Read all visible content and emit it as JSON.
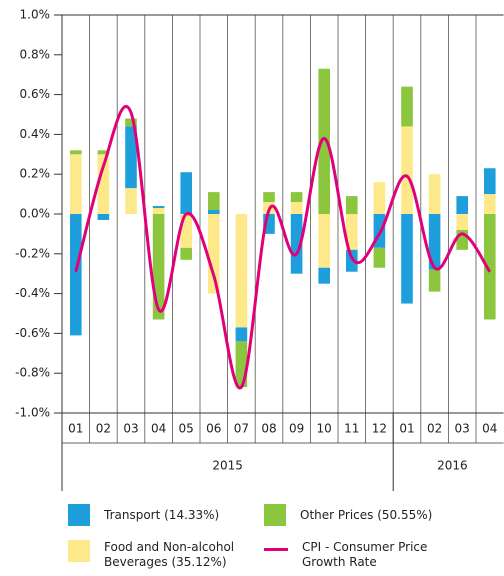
{
  "chart_data": {
    "type": "stacked-bar-line",
    "groups": [
      {
        "label": "2015",
        "categories": [
          "01",
          "02",
          "03",
          "04",
          "05",
          "06",
          "07",
          "08",
          "09",
          "10",
          "11",
          "12"
        ]
      },
      {
        "label": "2016",
        "categories": [
          "01",
          "02",
          "03",
          "04"
        ]
      }
    ],
    "series": [
      {
        "name": "Transport (14.33%)",
        "color": "#1e9fdc",
        "kind": "bar",
        "values": [
          -0.61,
          -0.03,
          0.31,
          0.01,
          0.21,
          0.02,
          -0.07,
          -0.1,
          -0.3,
          -0.08,
          -0.11,
          -0.17,
          -0.45,
          -0.28,
          0.09,
          0.13
        ]
      },
      {
        "name": "Food and Non-alcohol Beverages (35.12%)",
        "color": "#fde98a",
        "kind": "bar",
        "values": [
          0.3,
          0.3,
          0.13,
          0.03,
          -0.17,
          -0.4,
          -0.57,
          0.06,
          0.06,
          -0.27,
          -0.18,
          0.16,
          0.44,
          0.2,
          -0.08,
          0.1
        ]
      },
      {
        "name": "Other Prices (50.55%)",
        "color": "#8cc63f",
        "kind": "bar",
        "values": [
          0.02,
          0.02,
          0.04,
          -0.53,
          -0.06,
          0.09,
          -0.23,
          0.05,
          0.05,
          0.73,
          0.09,
          -0.1,
          0.2,
          -0.11,
          -0.1,
          -0.53
        ]
      },
      {
        "name": "CPI - Consumer Price Growth Rate",
        "color": "#e0007a",
        "kind": "line",
        "values": [
          -0.29,
          0.24,
          0.51,
          -0.48,
          0.0,
          -0.31,
          -0.87,
          0.02,
          -0.2,
          0.38,
          -0.22,
          -0.1,
          0.19,
          -0.27,
          -0.1,
          -0.29
        ]
      }
    ],
    "stack_order": [
      1,
      0,
      2
    ],
    "ylim": [
      -1.0,
      1.0
    ],
    "yticks": [
      {
        "value": -1.0,
        "label": "-1.0%"
      },
      {
        "value": -0.8,
        "label": "-0.8%"
      },
      {
        "value": -0.6,
        "label": "-0.6%"
      },
      {
        "value": -0.4,
        "label": "-0.4%"
      },
      {
        "value": -0.2,
        "label": "-0.2%"
      },
      {
        "value": 0.0,
        "label": "0.0%"
      },
      {
        "value": 0.2,
        "label": "0.2%"
      },
      {
        "value": 0.4,
        "label": "0.4%"
      },
      {
        "value": 0.6,
        "label": "0.6%"
      },
      {
        "value": 0.8,
        "label": "0.8%"
      },
      {
        "value": 1.0,
        "label": "1.0%"
      }
    ],
    "grid": "x"
  }
}
